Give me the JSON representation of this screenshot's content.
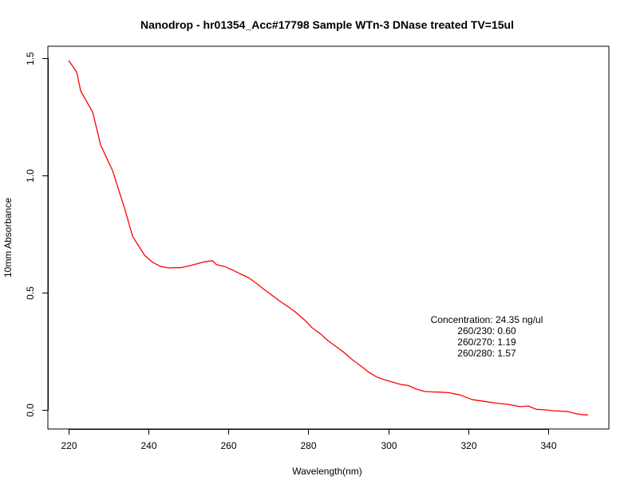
{
  "chart_data": {
    "type": "line",
    "title": "Nanodrop - hr01354_Acc#17798 Sample WTn-3 DNase treated TV=15ul",
    "xlabel": "Wavelength(nm)",
    "ylabel": "10mm Absorbance",
    "xlim": [
      214.8,
      355.2
    ],
    "ylim": [
      -0.08,
      1.55
    ],
    "x_ticks": [
      220,
      240,
      260,
      280,
      300,
      320,
      340
    ],
    "x_tick_labels": [
      "220",
      "240",
      "260",
      "280",
      "300",
      "320",
      "340"
    ],
    "y_ticks": [
      0.0,
      0.5,
      1.0,
      1.5
    ],
    "y_tick_labels": [
      "0.0",
      "0.5",
      "1.0",
      "1.5"
    ],
    "grid": false,
    "legend": "none",
    "series": [
      {
        "color": "#ff0000",
        "x": [
          220,
          222,
          223,
          226,
          228,
          231,
          234,
          236,
          239,
          241,
          243,
          245,
          247,
          248,
          250,
          252,
          254,
          256,
          257,
          259,
          261,
          263,
          265,
          267,
          269,
          271,
          273,
          275,
          277,
          279,
          281,
          283,
          285,
          287,
          289,
          291,
          293,
          295,
          297,
          299,
          301,
          303,
          305,
          307,
          309,
          311,
          313,
          315,
          318,
          321,
          324,
          327,
          330,
          333,
          335,
          337,
          339,
          341,
          343,
          345,
          347,
          349,
          350
        ],
        "y": [
          1.49,
          1.44,
          1.36,
          1.27,
          1.13,
          1.02,
          0.86,
          0.74,
          0.66,
          0.63,
          0.612,
          0.606,
          0.607,
          0.607,
          0.614,
          0.623,
          0.632,
          0.637,
          0.62,
          0.612,
          0.597,
          0.58,
          0.565,
          0.54,
          0.513,
          0.488,
          0.463,
          0.44,
          0.415,
          0.385,
          0.35,
          0.325,
          0.295,
          0.27,
          0.245,
          0.215,
          0.19,
          0.163,
          0.142,
          0.13,
          0.12,
          0.11,
          0.105,
          0.09,
          0.08,
          0.078,
          0.077,
          0.075,
          0.065,
          0.045,
          0.038,
          0.03,
          0.025,
          0.015,
          0.018,
          0.004,
          0.002,
          -0.002,
          -0.004,
          -0.006,
          -0.015,
          -0.02,
          -0.02
        ]
      }
    ],
    "annotations": [
      "Concentration: 24.35 ng/ul",
      "260/230: 0.60",
      "260/270: 1.19",
      "260/280: 1.57"
    ]
  }
}
